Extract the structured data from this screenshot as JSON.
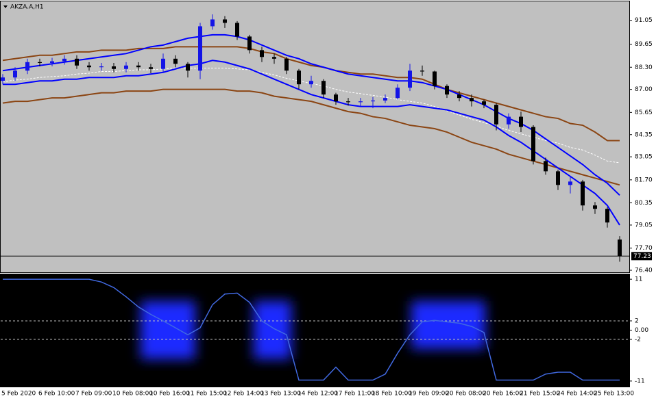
{
  "chart_data": [
    {
      "type": "candlestick",
      "title": "AKZA.A,H1",
      "categories": [
        "5 Feb 2020",
        null,
        null,
        "6 Feb 10:00",
        null,
        null,
        "7 Feb 09:00",
        null,
        null,
        "10 Feb 08:00",
        null,
        null,
        "10 Feb 16:00",
        null,
        null,
        "11 Feb 15:00",
        null,
        null,
        "12 Feb 14:00",
        null,
        null,
        "13 Feb 13:00",
        null,
        null,
        "14 Feb 12:00",
        null,
        null,
        "17 Feb 11:00",
        null,
        null,
        "18 Feb 10:00",
        null,
        null,
        "19 Feb 09:00",
        null,
        null,
        "20 Feb 08:00",
        null,
        null,
        "20 Feb 16:00",
        null,
        null,
        "21 Feb 15:00",
        null,
        null,
        "24 Feb 14:00",
        null,
        null,
        "25 Feb 13:00",
        null,
        null
      ],
      "open": [
        87.5,
        87.7,
        88.1,
        88.6,
        88.55,
        88.65,
        88.8,
        88.4,
        88.3,
        88.35,
        88.2,
        88.4,
        88.3,
        88.2,
        88.8,
        88.5,
        88.1,
        90.7,
        91.1,
        90.9,
        90.1,
        89.3,
        88.9,
        88.8,
        88.1,
        87.3,
        87.5,
        86.7,
        86.3,
        86.25,
        86.3,
        86.35,
        86.5,
        87.1,
        88.1,
        88.05,
        87.2,
        86.7,
        86.5,
        86.3,
        86.1,
        84.95,
        85.4,
        84.8,
        82.8,
        82.2,
        81.4,
        81.6,
        80.2,
        80.0,
        78.2
      ],
      "high": [
        87.9,
        88.3,
        88.8,
        88.8,
        88.85,
        89.0,
        89.0,
        88.6,
        88.55,
        88.55,
        88.6,
        88.6,
        88.5,
        89.1,
        89.0,
        88.6,
        90.9,
        91.4,
        91.3,
        91.0,
        90.2,
        89.5,
        89.1,
        88.9,
        88.2,
        87.8,
        87.6,
        86.8,
        86.5,
        86.5,
        86.55,
        86.7,
        87.3,
        88.5,
        88.4,
        88.1,
        87.3,
        86.9,
        86.7,
        86.4,
        86.2,
        85.6,
        85.7,
        84.9,
        83.0,
        82.3,
        81.9,
        81.7,
        80.4,
        80.1,
        78.4
      ],
      "low": [
        87.3,
        87.5,
        87.9,
        88.35,
        88.35,
        88.45,
        88.2,
        88.1,
        88.1,
        88.0,
        88.0,
        88.1,
        87.95,
        88.0,
        88.3,
        87.7,
        87.6,
        90.5,
        90.6,
        89.9,
        89.1,
        88.6,
        88.5,
        87.9,
        87.0,
        87.1,
        86.5,
        86.1,
        86.05,
        86.0,
        85.9,
        86.2,
        86.4,
        86.9,
        87.8,
        87.0,
        86.5,
        86.3,
        86.0,
        85.9,
        84.6,
        84.7,
        84.5,
        82.6,
        82.0,
        81.1,
        80.9,
        79.9,
        79.7,
        78.9,
        76.9
      ],
      "close": [
        87.7,
        88.1,
        88.6,
        88.55,
        88.65,
        88.8,
        88.4,
        88.3,
        88.35,
        88.2,
        88.4,
        88.3,
        88.2,
        88.8,
        88.5,
        88.1,
        90.7,
        91.1,
        90.9,
        90.1,
        89.3,
        88.9,
        88.8,
        88.1,
        87.3,
        87.5,
        86.7,
        86.3,
        86.25,
        86.3,
        86.35,
        86.5,
        87.1,
        88.1,
        88.05,
        87.2,
        86.7,
        86.5,
        86.3,
        86.1,
        84.95,
        85.4,
        84.8,
        82.8,
        82.2,
        81.4,
        81.6,
        80.2,
        80.0,
        79.2,
        77.23
      ],
      "up_color": "#1414e6",
      "down_color": "#000000",
      "lines": [
        {
          "color": "#8b4513",
          "dashed": false,
          "values": [
            88.7,
            88.8,
            88.9,
            89.0,
            89.0,
            89.1,
            89.2,
            89.2,
            89.3,
            89.3,
            89.3,
            89.4,
            89.4,
            89.4,
            89.5,
            89.5,
            89.5,
            89.5,
            89.5,
            89.5,
            89.4,
            89.2,
            89.1,
            88.8,
            88.6,
            88.4,
            88.3,
            88.1,
            88.0,
            87.9,
            87.9,
            87.8,
            87.7,
            87.7,
            87.6,
            87.3,
            87.0,
            86.8,
            86.6,
            86.4,
            86.2,
            86.0,
            85.8,
            85.6,
            85.4,
            85.3,
            85.0,
            84.9,
            84.5,
            84.0,
            84.0
          ]
        },
        {
          "color": "#8b4513",
          "dashed": false,
          "values": [
            86.2,
            86.3,
            86.3,
            86.4,
            86.5,
            86.5,
            86.6,
            86.7,
            86.8,
            86.8,
            86.9,
            86.9,
            86.9,
            87.0,
            87.0,
            87.0,
            87.0,
            87.0,
            87.0,
            86.9,
            86.9,
            86.8,
            86.6,
            86.5,
            86.4,
            86.3,
            86.1,
            85.9,
            85.7,
            85.6,
            85.4,
            85.3,
            85.1,
            84.9,
            84.8,
            84.7,
            84.5,
            84.2,
            83.9,
            83.7,
            83.5,
            83.2,
            83.0,
            82.8,
            82.6,
            82.4,
            82.2,
            82.0,
            81.8,
            81.6,
            81.4
          ]
        },
        {
          "color": "#ffffff",
          "dashed": true,
          "values": [
            87.45,
            87.55,
            87.6,
            87.7,
            87.75,
            87.8,
            87.9,
            87.95,
            88.05,
            88.05,
            88.1,
            88.15,
            88.15,
            88.2,
            88.25,
            88.25,
            88.25,
            88.25,
            88.25,
            88.2,
            88.15,
            88.0,
            87.85,
            87.65,
            87.5,
            87.35,
            87.2,
            87.0,
            86.85,
            86.75,
            86.65,
            86.55,
            86.4,
            86.3,
            86.2,
            86.0,
            85.75,
            85.5,
            85.25,
            85.05,
            84.85,
            84.6,
            84.4,
            84.2,
            84.0,
            83.85,
            83.6,
            83.45,
            83.15,
            82.8,
            82.7
          ]
        },
        {
          "color": "#0000ff",
          "dashed": false,
          "values": [
            88.1,
            88.2,
            88.3,
            88.4,
            88.5,
            88.6,
            88.7,
            88.8,
            88.9,
            89.0,
            89.1,
            89.3,
            89.5,
            89.6,
            89.8,
            90.0,
            90.1,
            90.2,
            90.2,
            90.1,
            89.9,
            89.6,
            89.3,
            89.0,
            88.8,
            88.5,
            88.3,
            88.1,
            87.9,
            87.8,
            87.7,
            87.6,
            87.5,
            87.5,
            87.4,
            87.2,
            87.0,
            86.7,
            86.4,
            86.1,
            85.7,
            85.3,
            85.0,
            84.6,
            84.1,
            83.6,
            83.1,
            82.6,
            82.0,
            81.5,
            80.8
          ]
        },
        {
          "color": "#0000ff",
          "dashed": false,
          "values": [
            87.3,
            87.3,
            87.4,
            87.5,
            87.5,
            87.6,
            87.6,
            87.7,
            87.7,
            87.7,
            87.8,
            87.8,
            87.9,
            88.0,
            88.2,
            88.4,
            88.5,
            88.7,
            88.6,
            88.4,
            88.2,
            87.9,
            87.6,
            87.3,
            87.0,
            86.7,
            86.5,
            86.3,
            86.1,
            86.0,
            86.0,
            86.0,
            86.0,
            86.1,
            86.0,
            85.9,
            85.8,
            85.6,
            85.4,
            85.2,
            84.8,
            84.3,
            83.9,
            83.4,
            82.9,
            82.4,
            81.9,
            81.4,
            80.9,
            80.2,
            79.05
          ]
        }
      ],
      "last_price": 77.23,
      "ylim": [
        76.28,
        92.16
      ],
      "yticks": [
        91.05,
        89.65,
        {
          "value": 88.3,
          "label": "88.30"
        },
        {
          "value": 87.0,
          "label": "87.00"
        },
        85.65,
        84.35,
        83.05,
        {
          "value": 81.7,
          "label": "81.70"
        },
        80.35,
        79.05,
        {
          "value": 77.7,
          "label": "77.70"
        },
        {
          "value": 76.4,
          "label": "76.40"
        }
      ]
    },
    {
      "type": "line",
      "color": "#4169e1",
      "values": [
        11,
        11,
        11,
        11,
        11,
        11,
        11,
        11,
        10.4,
        9.2,
        7.2,
        5.0,
        3.4,
        2.0,
        0.5,
        -1.0,
        0.5,
        5.5,
        7.8,
        8.0,
        6.0,
        2.0,
        0.3,
        -1.0,
        -10.8,
        -10.8,
        -10.8,
        -8.0,
        -10.8,
        -10.8,
        -10.8,
        -9.5,
        -5.0,
        -1.0,
        1.8,
        2.1,
        1.8,
        1.5,
        0.8,
        -0.5,
        -10.8,
        -10.8,
        -10.8,
        -10.8,
        -9.5,
        -9.1,
        -9.1,
        -10.8,
        -10.8,
        -10.8,
        -10.8
      ],
      "levels": [
        2,
        -2
      ],
      "ylim": [
        -12.2,
        12.2
      ],
      "yticks": [
        11,
        2,
        {
          "value": 0,
          "label": "0.00"
        },
        -2,
        -11
      ]
    }
  ]
}
